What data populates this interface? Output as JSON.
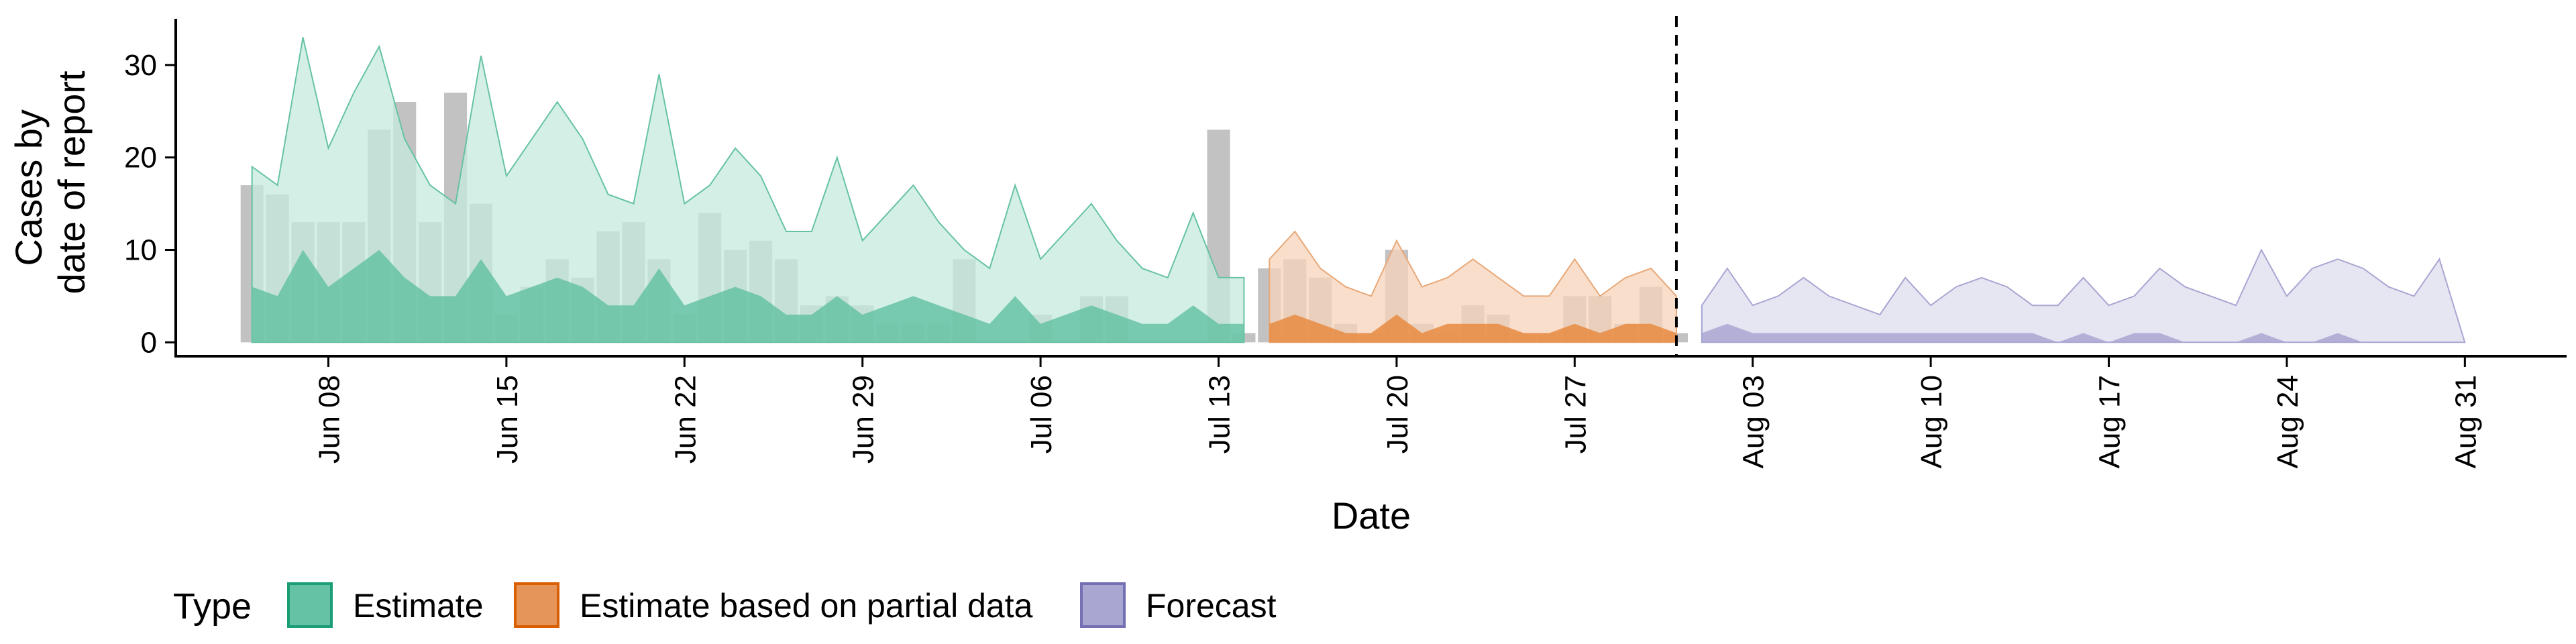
{
  "chart_data": {
    "type": "area",
    "xlabel": "Date",
    "ylabel_lines": [
      "Cases by",
      "date of report"
    ],
    "ylim": [
      -1.5,
      35
    ],
    "xlim": [
      "2020-06-02",
      "2020-09-04"
    ],
    "y_ticks": [
      0,
      10,
      20,
      30
    ],
    "y_tick_labels": [
      "0",
      "10",
      "20",
      "30"
    ],
    "x_ticks": [
      "2020-06-08",
      "2020-06-15",
      "2020-06-22",
      "2020-06-29",
      "2020-07-06",
      "2020-07-13",
      "2020-07-20",
      "2020-07-27",
      "2020-08-03",
      "2020-08-10",
      "2020-08-17",
      "2020-08-24",
      "2020-08-31"
    ],
    "x_tick_labels": [
      "Jun 08",
      "Jun 15",
      "Jun 22",
      "Jun 29",
      "Jul 06",
      "Jul 13",
      "Jul 20",
      "Jul 27",
      "Aug 03",
      "Aug 10",
      "Aug 17",
      "Aug 24",
      "Aug 31"
    ],
    "vline_date": "2020-07-31",
    "grid": false,
    "legend": {
      "title": "Type",
      "position": "bottom",
      "items": [
        {
          "label": "Estimate",
          "fill": "#66c2a5",
          "stroke": "#1b9e77"
        },
        {
          "label": "Estimate based on partial data",
          "fill": "#e6955a",
          "stroke": "#d95f02"
        },
        {
          "label": "Forecast",
          "fill": "#a9a6d2",
          "stroke": "#7570b3"
        }
      ]
    },
    "colors": {
      "reported_bar": "#999999",
      "estimate_outer": "#c6ebdd",
      "estimate_inner": "#66c2a5",
      "estimate_line": "#66c2a5",
      "partial_outer": "#f6d3ba",
      "partial_inner": "#e8893f",
      "partial_line": "#e8a878",
      "forecast_outer": "#dddcee",
      "forecast_inner": "#a9a6d2",
      "forecast_line": "#a9a6d2"
    },
    "reported_cases": {
      "dates": [
        "2020-06-05",
        "2020-06-06",
        "2020-06-07",
        "2020-06-08",
        "2020-06-09",
        "2020-06-10",
        "2020-06-11",
        "2020-06-12",
        "2020-06-13",
        "2020-06-14",
        "2020-06-15",
        "2020-06-16",
        "2020-06-17",
        "2020-06-18",
        "2020-06-19",
        "2020-06-20",
        "2020-06-21",
        "2020-06-22",
        "2020-06-23",
        "2020-06-24",
        "2020-06-25",
        "2020-06-26",
        "2020-06-27",
        "2020-06-28",
        "2020-06-29",
        "2020-06-30",
        "2020-07-01",
        "2020-07-02",
        "2020-07-03",
        "2020-07-04",
        "2020-07-05",
        "2020-07-06",
        "2020-07-07",
        "2020-07-08",
        "2020-07-09",
        "2020-07-10",
        "2020-07-11",
        "2020-07-12",
        "2020-07-13",
        "2020-07-14",
        "2020-07-15",
        "2020-07-16",
        "2020-07-17",
        "2020-07-18",
        "2020-07-19",
        "2020-07-20",
        "2020-07-21",
        "2020-07-22",
        "2020-07-23",
        "2020-07-24",
        "2020-07-25",
        "2020-07-26",
        "2020-07-27",
        "2020-07-28",
        "2020-07-29",
        "2020-07-30",
        "2020-07-31"
      ],
      "values": [
        17,
        16,
        13,
        13,
        13,
        23,
        26,
        13,
        27,
        15,
        3,
        6,
        9,
        7,
        12,
        13,
        9,
        3,
        14,
        10,
        11,
        9,
        4,
        5,
        4,
        2,
        2,
        2,
        9,
        0,
        0,
        3,
        0,
        5,
        5,
        0,
        0,
        0,
        23,
        1,
        8,
        9,
        7,
        2,
        1,
        10,
        2,
        1,
        4,
        3,
        1,
        1,
        5,
        5,
        2,
        6,
        1
      ]
    },
    "estimate": {
      "dates": [
        "2020-06-05",
        "2020-06-06",
        "2020-06-07",
        "2020-06-08",
        "2020-06-09",
        "2020-06-10",
        "2020-06-11",
        "2020-06-12",
        "2020-06-13",
        "2020-06-14",
        "2020-06-15",
        "2020-06-16",
        "2020-06-17",
        "2020-06-18",
        "2020-06-19",
        "2020-06-20",
        "2020-06-21",
        "2020-06-22",
        "2020-06-23",
        "2020-06-24",
        "2020-06-25",
        "2020-06-26",
        "2020-06-27",
        "2020-06-28",
        "2020-06-29",
        "2020-06-30",
        "2020-07-01",
        "2020-07-02",
        "2020-07-03",
        "2020-07-04",
        "2020-07-05",
        "2020-07-06",
        "2020-07-07",
        "2020-07-08",
        "2020-07-09",
        "2020-07-10",
        "2020-07-11",
        "2020-07-12",
        "2020-07-13",
        "2020-07-14"
      ],
      "upper_90": [
        19,
        17,
        33,
        21,
        27,
        32,
        22,
        17,
        15,
        31,
        18,
        22,
        26,
        22,
        16,
        15,
        29,
        15,
        17,
        21,
        18,
        12,
        12,
        20,
        11,
        14,
        17,
        13,
        10,
        8,
        17,
        9,
        12,
        15,
        11,
        8,
        7,
        14,
        7,
        7
      ],
      "lower_90": [
        6,
        5,
        10,
        6,
        8,
        10,
        7,
        5,
        5,
        9,
        5,
        6,
        7,
        6,
        4,
        4,
        8,
        4,
        5,
        6,
        5,
        3,
        3,
        5,
        3,
        4,
        5,
        4,
        3,
        2,
        5,
        2,
        3,
        4,
        3,
        2,
        2,
        4,
        2,
        2
      ],
      "upper_50": [
        6,
        5,
        10,
        6,
        8,
        10,
        7,
        5,
        5,
        9,
        5,
        6,
        7,
        6,
        4,
        4,
        8,
        4,
        5,
        6,
        5,
        3,
        3,
        5,
        3,
        4,
        5,
        4,
        3,
        2,
        5,
        2,
        3,
        4,
        3,
        2,
        2,
        4,
        2,
        2
      ],
      "lower_50": [
        0,
        0,
        0,
        0,
        0,
        0,
        0,
        0,
        0,
        0,
        0,
        0,
        0,
        0,
        0,
        0,
        0,
        0,
        0,
        0,
        0,
        0,
        0,
        0,
        0,
        0,
        0,
        0,
        0,
        0,
        0,
        0,
        0,
        0,
        0,
        0,
        0,
        0,
        0,
        0
      ]
    },
    "partial": {
      "dates": [
        "2020-07-15",
        "2020-07-16",
        "2020-07-17",
        "2020-07-18",
        "2020-07-19",
        "2020-07-20",
        "2020-07-21",
        "2020-07-22",
        "2020-07-23",
        "2020-07-24",
        "2020-07-25",
        "2020-07-26",
        "2020-07-27",
        "2020-07-28",
        "2020-07-29",
        "2020-07-30",
        "2020-07-31"
      ],
      "upper_90": [
        9,
        12,
        8,
        6,
        5,
        11,
        6,
        7,
        9,
        7,
        5,
        5,
        9,
        5,
        7,
        8,
        5
      ],
      "lower_90": [
        2,
        3,
        2,
        1,
        1,
        3,
        1,
        2,
        2,
        2,
        1,
        1,
        2,
        1,
        2,
        2,
        1
      ],
      "upper_50": [
        2,
        3,
        2,
        1,
        1,
        3,
        1,
        2,
        2,
        2,
        1,
        1,
        2,
        1,
        2,
        2,
        1
      ],
      "lower_50": [
        0,
        0,
        0,
        0,
        0,
        0,
        0,
        0,
        0,
        0,
        0,
        0,
        0,
        0,
        0,
        0,
        0
      ]
    },
    "forecast": {
      "dates": [
        "2020-08-01",
        "2020-08-02",
        "2020-08-03",
        "2020-08-04",
        "2020-08-05",
        "2020-08-06",
        "2020-08-07",
        "2020-08-08",
        "2020-08-09",
        "2020-08-10",
        "2020-08-11",
        "2020-08-12",
        "2020-08-13",
        "2020-08-14",
        "2020-08-15",
        "2020-08-16",
        "2020-08-17",
        "2020-08-18",
        "2020-08-19",
        "2020-08-20",
        "2020-08-21",
        "2020-08-22",
        "2020-08-23",
        "2020-08-24",
        "2020-08-25",
        "2020-08-26",
        "2020-08-27",
        "2020-08-28",
        "2020-08-29",
        "2020-08-30",
        "2020-08-31"
      ],
      "upper_90": [
        4,
        8,
        4,
        5,
        7,
        5,
        4,
        3,
        7,
        4,
        6,
        7,
        6,
        4,
        4,
        7,
        4,
        5,
        8,
        6,
        5,
        4,
        10,
        5,
        8,
        9,
        8,
        6,
        5,
        9,
        0
      ],
      "lower_90": [
        1,
        2,
        1,
        1,
        1,
        1,
        1,
        1,
        1,
        1,
        1,
        1,
        1,
        1,
        0,
        1,
        0,
        1,
        1,
        0,
        0,
        0,
        1,
        0,
        0,
        1,
        0,
        0,
        0,
        0,
        0
      ],
      "upper_50": [
        1,
        2,
        1,
        1,
        1,
        1,
        1,
        1,
        1,
        1,
        1,
        1,
        1,
        1,
        0,
        1,
        0,
        1,
        1,
        0,
        0,
        0,
        1,
        0,
        0,
        1,
        0,
        0,
        0,
        0,
        0
      ],
      "lower_50": [
        0,
        0,
        0,
        0,
        0,
        0,
        0,
        0,
        0,
        0,
        0,
        0,
        0,
        0,
        0,
        0,
        0,
        0,
        0,
        0,
        0,
        0,
        0,
        0,
        0,
        0,
        0,
        0,
        0,
        0,
        0
      ]
    }
  }
}
